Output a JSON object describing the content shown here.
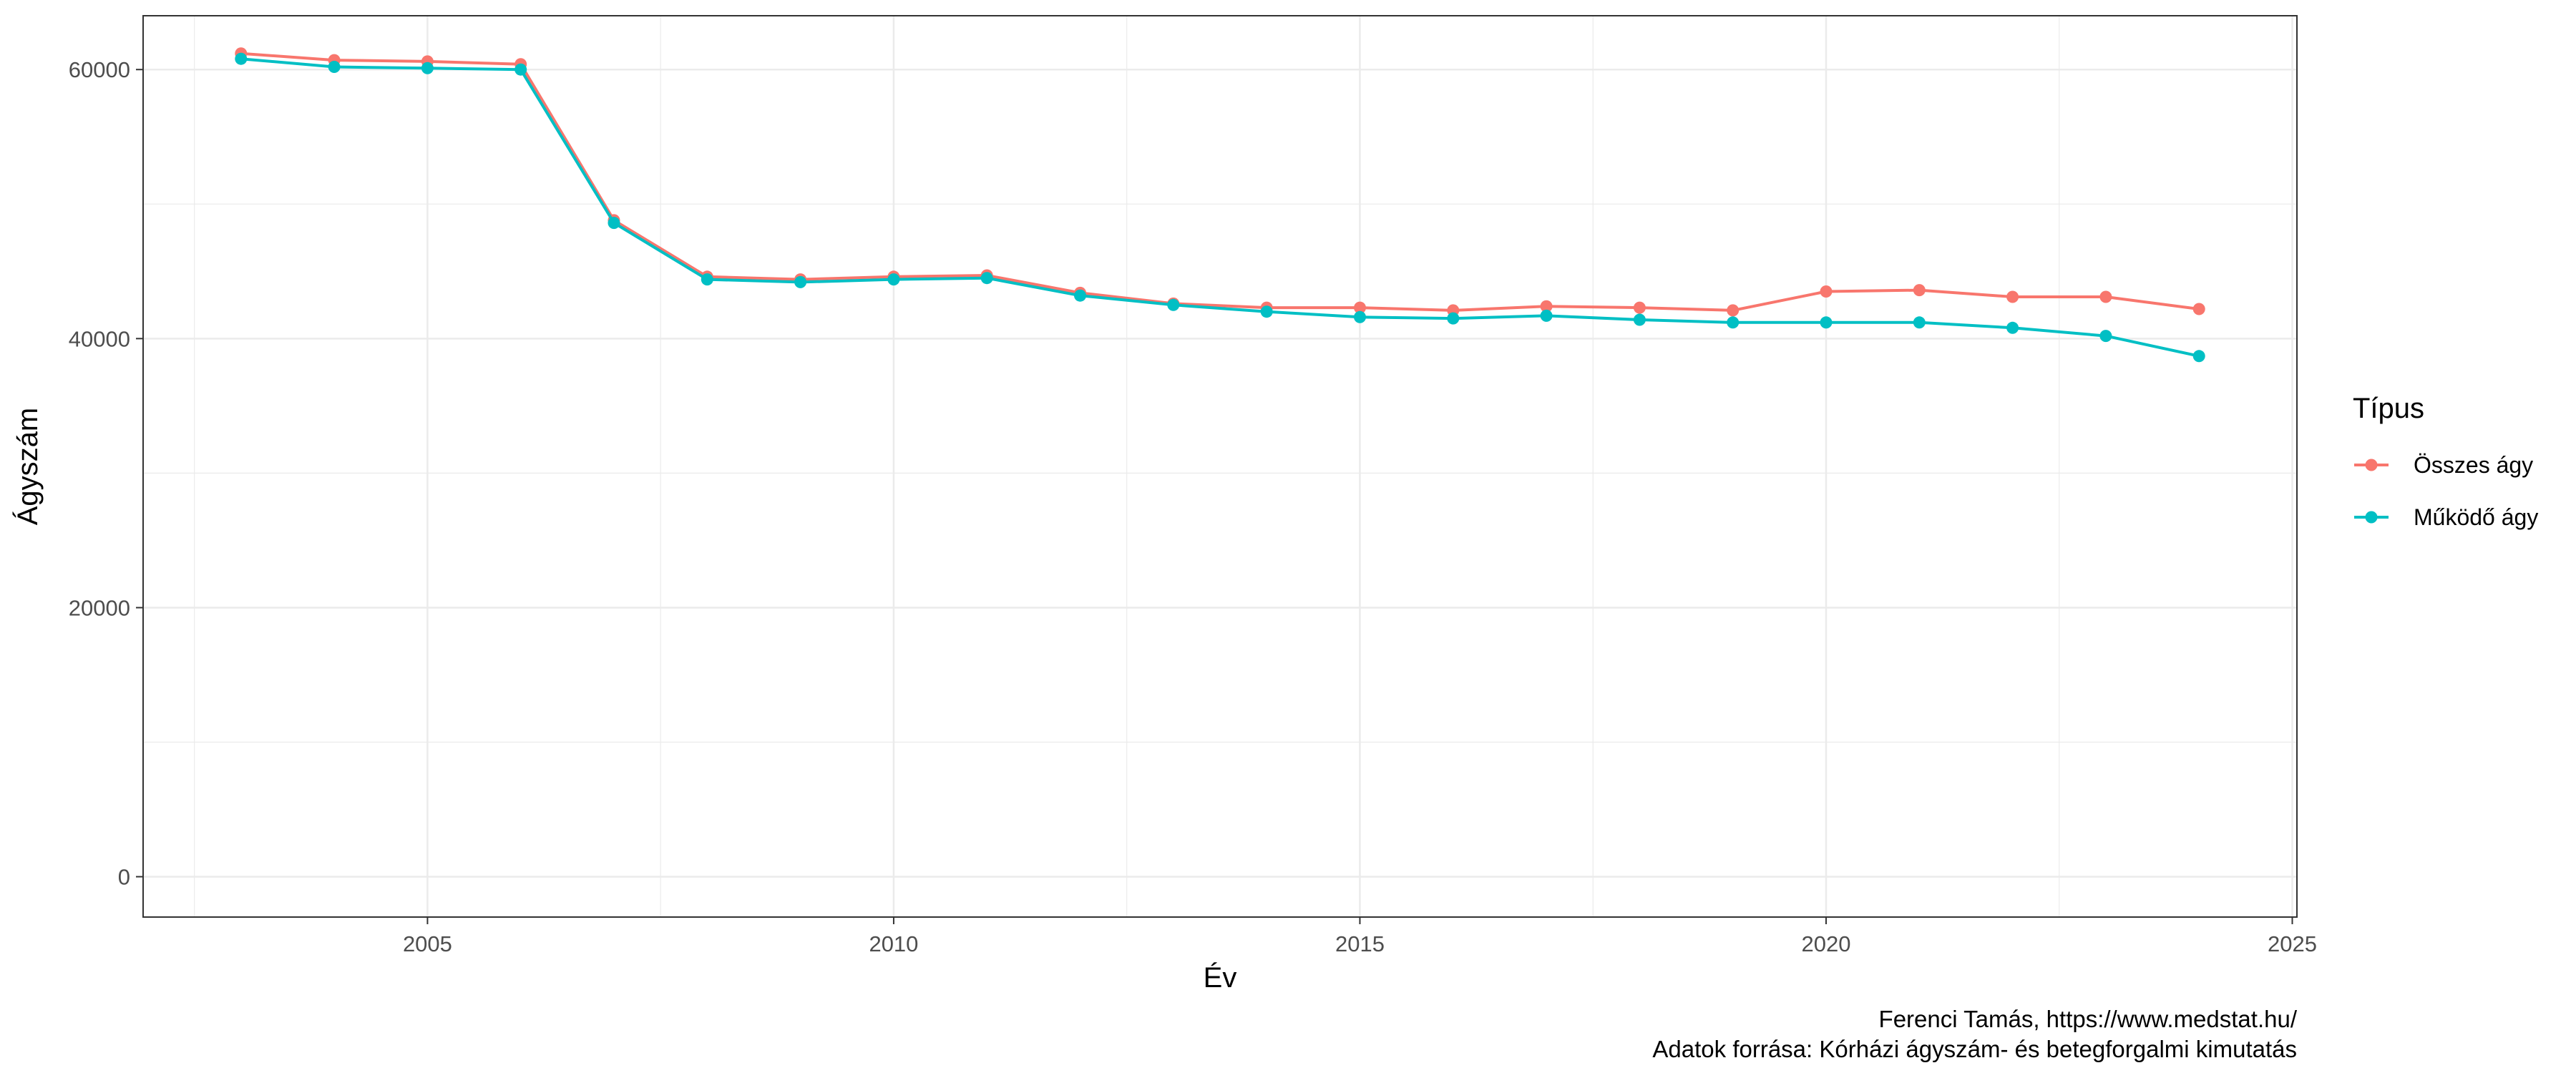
{
  "chart_data": {
    "type": "line",
    "title": "",
    "xlabel": "Év",
    "ylabel": "Ágyszám",
    "xlim": [
      2001.95,
      2025.05
    ],
    "ylim": [
      -3000,
      64000
    ],
    "x_ticks": [
      2005,
      2010,
      2015,
      2020,
      2025
    ],
    "x_tick_labels": [
      "2005",
      "2010",
      "2015",
      "2020",
      "2025"
    ],
    "y_ticks": [
      0,
      20000,
      40000,
      60000
    ],
    "y_tick_labels": [
      "0",
      "20000",
      "40000",
      "60000"
    ],
    "grid": true,
    "legend": {
      "title": "Típus",
      "position": "right"
    },
    "x": [
      2003,
      2004,
      2005,
      2006,
      2007,
      2008,
      2009,
      2010,
      2011,
      2012,
      2013,
      2014,
      2015,
      2016,
      2017,
      2018,
      2019,
      2020,
      2021,
      2022,
      2023,
      2024
    ],
    "series": [
      {
        "name": "Összes ágy",
        "color": "#F8766D",
        "values": [
          61200,
          60700,
          60600,
          60400,
          48800,
          44600,
          44400,
          44600,
          44700,
          43400,
          42600,
          42300,
          42300,
          42100,
          42400,
          42300,
          42100,
          43500,
          43600,
          43100,
          43100,
          42200
        ]
      },
      {
        "name": "Működő ágy",
        "color": "#00BFC4",
        "values": [
          60800,
          60200,
          60100,
          60000,
          48600,
          44400,
          44200,
          44400,
          44500,
          43200,
          42500,
          42000,
          41600,
          41500,
          41700,
          41400,
          41200,
          41200,
          41200,
          40800,
          40200,
          38700
        ]
      }
    ],
    "caption": [
      "Ferenci Tamás, https://www.medstat.hu/",
      "Adatok forrása: Kórházi ágyszám- és betegforgalmi kimutatás"
    ]
  }
}
